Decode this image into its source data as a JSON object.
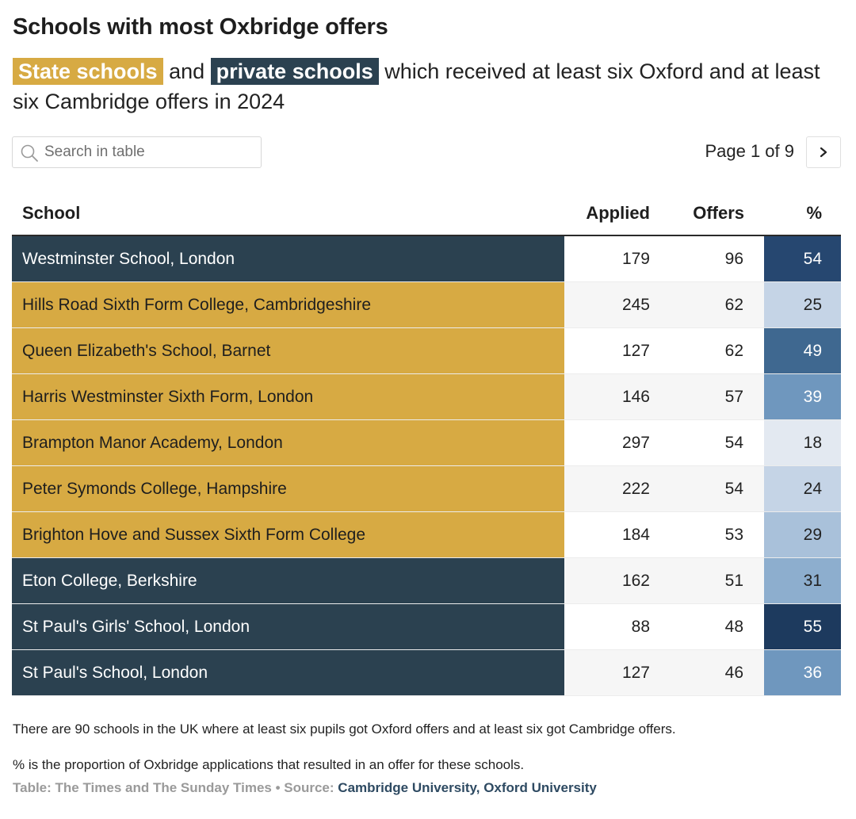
{
  "title": "Schools with most Oxbridge offers",
  "subtitle": {
    "state_tag": "State schools",
    "and": "and",
    "private_tag": "private schools",
    "rest": "which received at least six Oxford and at least six Cambridge offers in 2024"
  },
  "search": {
    "placeholder": "Search in table",
    "value": ""
  },
  "pager": {
    "label": "Page 1 of 9",
    "next_icon": "chevron-right-icon"
  },
  "colors": {
    "state": "#d7aa43",
    "private": "#2b4150",
    "pct_scale": [
      "#e3e9f1",
      "#c5d4e6",
      "#a9c1da",
      "#8daece",
      "#6f97be",
      "#3f6890",
      "#264770",
      "#1d3a5e"
    ]
  },
  "table": {
    "headers": {
      "school": "School",
      "applied": "Applied",
      "offers": "Offers",
      "pct": "%"
    },
    "rows": [
      {
        "school": "Westminster School, London",
        "type": "private",
        "applied": "179",
        "offers": "96",
        "pct": "54"
      },
      {
        "school": "Hills Road Sixth Form College, Cambridgeshire",
        "type": "state",
        "applied": "245",
        "offers": "62",
        "pct": "25"
      },
      {
        "school": "Queen Elizabeth's School, Barnet",
        "type": "state",
        "applied": "127",
        "offers": "62",
        "pct": "49"
      },
      {
        "school": "Harris Westminster Sixth Form, London",
        "type": "state",
        "applied": "146",
        "offers": "57",
        "pct": "39"
      },
      {
        "school": "Brampton Manor Academy, London",
        "type": "state",
        "applied": "297",
        "offers": "54",
        "pct": "18"
      },
      {
        "school": "Peter Symonds College, Hampshire",
        "type": "state",
        "applied": "222",
        "offers": "54",
        "pct": "24"
      },
      {
        "school": "Brighton Hove and Sussex Sixth Form College",
        "type": "state",
        "applied": "184",
        "offers": "53",
        "pct": "29"
      },
      {
        "school": "Eton College, Berkshire",
        "type": "private",
        "applied": "162",
        "offers": "51",
        "pct": "31"
      },
      {
        "school": "St Paul's Girls' School, London",
        "type": "private",
        "applied": "88",
        "offers": "48",
        "pct": "55"
      },
      {
        "school": "St Paul's School, London",
        "type": "private",
        "applied": "127",
        "offers": "46",
        "pct": "36"
      }
    ]
  },
  "notes": {
    "note1": "There are 90 schools in the UK where at least six pupils got Oxford offers and at least six got Cambridge offers.",
    "note2": "% is the proportion of Oxbridge applications that resulted in an offer for these schools."
  },
  "credit": {
    "prefix": "Table: The Times and The Sunday Times • Source:",
    "source": "Cambridge University, Oxford University"
  }
}
